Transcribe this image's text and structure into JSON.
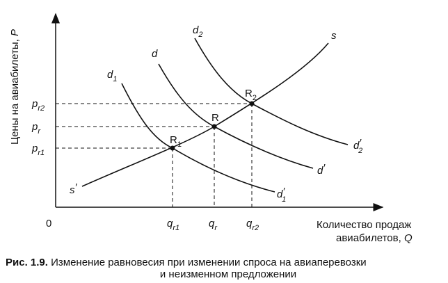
{
  "axes": {
    "y_label": {
      "text": "Цены на авиабилеты, ",
      "var": "P"
    },
    "origin": "0",
    "x_label": {
      "line1": "Количество продаж",
      "line2": "авиабилетов, ",
      "var": "Q"
    }
  },
  "ticks": {
    "y": [
      {
        "main": "p",
        "sub": "r2"
      },
      {
        "main": "p",
        "sub": "r"
      },
      {
        "main": "p",
        "sub": "r1"
      }
    ],
    "x": [
      {
        "main": "q",
        "sub": "r1"
      },
      {
        "main": "q",
        "sub": "r"
      },
      {
        "main": "q",
        "sub": "r2"
      }
    ]
  },
  "curves": {
    "s": {
      "main": "s"
    },
    "s_start": {
      "main": "s",
      "prime": "′"
    },
    "d": {
      "main": "d"
    },
    "d_end": {
      "main": "d",
      "prime": "′"
    },
    "d1": {
      "main": "d",
      "sub": "1"
    },
    "d1_end": {
      "main": "d",
      "prime": "′",
      "sub": "1"
    },
    "d2": {
      "main": "d",
      "sub": "2"
    },
    "d2_end": {
      "main": "d",
      "prime": "′",
      "sub": "2"
    }
  },
  "points": [
    {
      "main": "R",
      "sub": "1"
    },
    {
      "main": "R"
    },
    {
      "main": "R",
      "sub": "2"
    }
  ],
  "caption": {
    "label": "Рис. 1.9.",
    "text": " Изменение равновесия при изменении спроса на авиаперевозки",
    "line2": "и неизменном предложении"
  }
}
